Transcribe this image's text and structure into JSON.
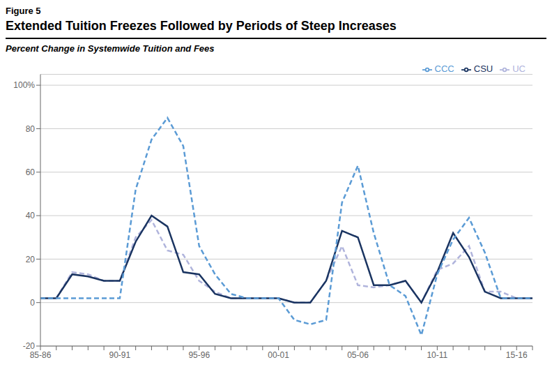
{
  "chart_data": {
    "type": "line",
    "title": "Extended Tuition Freezes Followed by Periods of Steep Increases",
    "subtitle": "Percent Change in Systemwide Tuition and Fees",
    "annotations": [
      "Figure 5"
    ],
    "categories": [
      "85-86",
      null,
      null,
      null,
      null,
      "90-91",
      null,
      null,
      null,
      null,
      "95-96",
      null,
      null,
      null,
      null,
      "00-01",
      null,
      null,
      null,
      null,
      "05-06",
      null,
      null,
      null,
      null,
      "10-11",
      null,
      null,
      null,
      null,
      "15-16",
      null
    ],
    "series": [
      {
        "name": "UC",
        "color": "#b0b4dc",
        "line_style": "dashed",
        "values": [
          2,
          2,
          14,
          13,
          10,
          10,
          30,
          38,
          24,
          22,
          10,
          5,
          2,
          2,
          2,
          2,
          0,
          0,
          10,
          26,
          8,
          7,
          8,
          10,
          0,
          15,
          18,
          26,
          5,
          5,
          2,
          2
        ]
      },
      {
        "name": "CSU",
        "color": "#1a3461",
        "line_style": "solid",
        "values": [
          2,
          2,
          13,
          12,
          10,
          10,
          28,
          40,
          35,
          14,
          13,
          4,
          2,
          2,
          2,
          2,
          0,
          0,
          10,
          33,
          30,
          8,
          8,
          10,
          0,
          14,
          32,
          21,
          5,
          2,
          2,
          2
        ]
      },
      {
        "name": "CCC",
        "color": "#5b9bd5",
        "line_style": "dashed",
        "values": [
          2,
          2,
          2,
          2,
          2,
          2,
          52,
          75,
          85,
          72,
          26,
          13,
          4,
          2,
          2,
          2,
          -8,
          -10,
          -8,
          46,
          63,
          32,
          8,
          3,
          -15,
          13,
          29,
          39,
          23,
          2,
          2,
          2
        ]
      }
    ],
    "ylim": [
      -20,
      105
    ],
    "yticks": [
      -20,
      0,
      20,
      40,
      60,
      80,
      {
        "value": 100,
        "label": "100%"
      }
    ],
    "grid": true,
    "legend": "upper right"
  }
}
